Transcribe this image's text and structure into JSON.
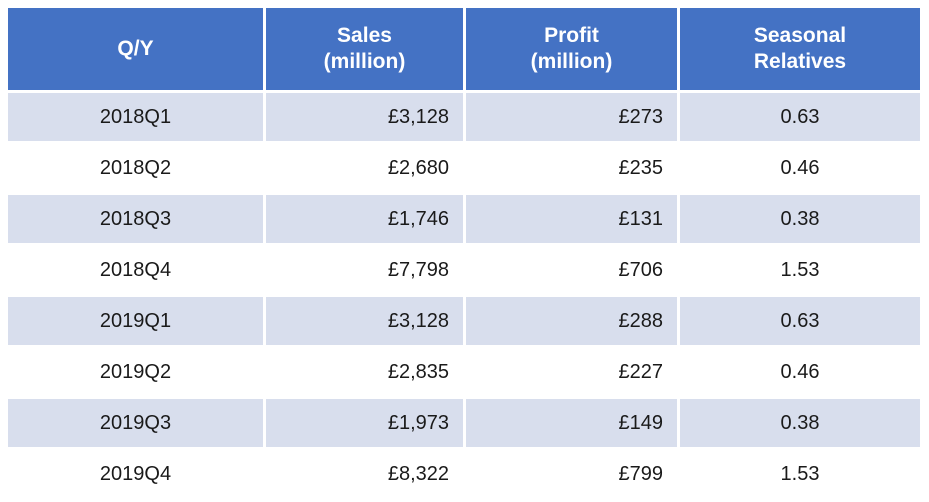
{
  "colors": {
    "header_bg": "#4472C4",
    "header_text": "#FFFFFF",
    "band_bg": "#D8DEED",
    "body_text": "#1A1A1A"
  },
  "table": {
    "header_lines": [
      [
        "Q/Y"
      ],
      [
        "Sales",
        "(million)"
      ],
      [
        "Profit",
        "(million)"
      ],
      [
        "Seasonal",
        "Relatives"
      ]
    ]
  },
  "chart_data": {
    "type": "table",
    "columns": [
      "Q/Y",
      "Sales (million)",
      "Profit (million)",
      "Seasonal Relatives"
    ],
    "rows": [
      [
        "2018Q1",
        "£3,128",
        "£273",
        "0.63"
      ],
      [
        "2018Q2",
        "£2,680",
        "£235",
        "0.46"
      ],
      [
        "2018Q3",
        "£1,746",
        "£131",
        "0.38"
      ],
      [
        "2018Q4",
        "£7,798",
        "£706",
        "1.53"
      ],
      [
        "2019Q1",
        "£3,128",
        "£288",
        "0.63"
      ],
      [
        "2019Q2",
        "£2,835",
        "£227",
        "0.46"
      ],
      [
        "2019Q3",
        "£1,973",
        "£149",
        "0.38"
      ],
      [
        "2019Q4",
        "£8,322",
        "£799",
        "1.53"
      ]
    ]
  }
}
